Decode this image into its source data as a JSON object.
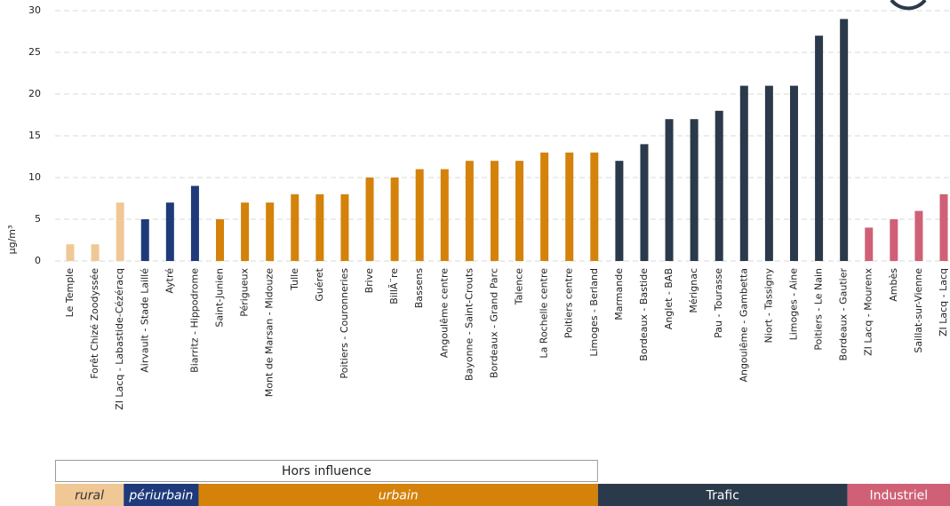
{
  "chart_data": {
    "type": "bar",
    "y_label": "µg/m³",
    "ylim": [
      0,
      30
    ],
    "yticks": [
      0,
      5,
      10,
      15,
      20,
      25,
      30
    ],
    "grid": true,
    "categories": [
      "Le Temple",
      "Forêt Chizé Zoodyssée",
      "ZI Lacq - Labastide-Cézéracq",
      "Airvault - Stade Laillé",
      "Aytré",
      "Biarritz - Hippodrome",
      "Saint-Junien",
      "Périgueux",
      "Mont de Marsan - Midouze",
      "Tulle",
      "Guéret",
      "Poitiers - Couronneries",
      "Brive",
      "BillÃ¨re",
      "Bassens",
      "Angoulême centre",
      "Bayonne - Saint-Crouts",
      "Bordeaux - Grand Parc",
      "Talence",
      "La Rochelle centre",
      "Poitiers centre",
      "Limoges - Berland",
      "Marmande",
      "Bordeaux - Bastide",
      "Anglet - BAB",
      "Mérignac",
      "Pau - Tourasse",
      "Angoulême - Gambetta",
      "Niort - Tassigny",
      "Limoges - Aine",
      "Poitiers - Le Nain",
      "Bordeaux - Gautier",
      "ZI Lacq - Mourenx",
      "Ambès",
      "Saillat-sur-Vienne",
      "ZI Lacq - Lacq"
    ],
    "series": [
      {
        "name": "rural",
        "color": "#f0c896",
        "italic": true,
        "values": [
          2,
          2,
          7,
          null,
          null,
          null,
          null,
          null,
          null,
          null,
          null,
          null,
          null,
          null,
          null,
          null,
          null,
          null,
          null,
          null,
          null,
          null,
          null,
          null,
          null,
          null,
          null,
          null,
          null,
          null,
          null,
          null,
          null,
          null,
          null,
          null
        ]
      },
      {
        "name": "périurbain",
        "color": "#1f3a7a",
        "italic": true,
        "values": [
          null,
          null,
          null,
          5,
          7,
          9,
          null,
          null,
          null,
          null,
          null,
          null,
          null,
          null,
          null,
          null,
          null,
          null,
          null,
          null,
          null,
          null,
          null,
          null,
          null,
          null,
          null,
          null,
          null,
          null,
          null,
          null,
          null,
          null,
          null,
          null
        ]
      },
      {
        "name": "urbain",
        "color": "#d4820a",
        "italic": true,
        "values": [
          null,
          null,
          null,
          null,
          null,
          null,
          5,
          7,
          7,
          8,
          8,
          8,
          10,
          10,
          11,
          11,
          12,
          12,
          12,
          13,
          13,
          13,
          null,
          null,
          null,
          null,
          null,
          null,
          null,
          null,
          null,
          null,
          null,
          null,
          null,
          null
        ]
      },
      {
        "name": "Trafic",
        "color": "#2b3a4a",
        "italic": false,
        "values": [
          null,
          null,
          null,
          null,
          null,
          null,
          null,
          null,
          null,
          null,
          null,
          null,
          null,
          null,
          null,
          null,
          null,
          null,
          null,
          null,
          null,
          null,
          12,
          14,
          17,
          17,
          18,
          21,
          21,
          21,
          27,
          29,
          null,
          null,
          null,
          null
        ]
      },
      {
        "name": "Industriel",
        "color": "#d06075",
        "italic": false,
        "values": [
          null,
          null,
          null,
          null,
          null,
          null,
          null,
          null,
          null,
          null,
          null,
          null,
          null,
          null,
          null,
          null,
          null,
          null,
          null,
          null,
          null,
          null,
          null,
          null,
          null,
          null,
          null,
          null,
          null,
          null,
          null,
          null,
          4,
          5,
          6,
          8
        ]
      }
    ],
    "group_label": "Hors influence"
  }
}
